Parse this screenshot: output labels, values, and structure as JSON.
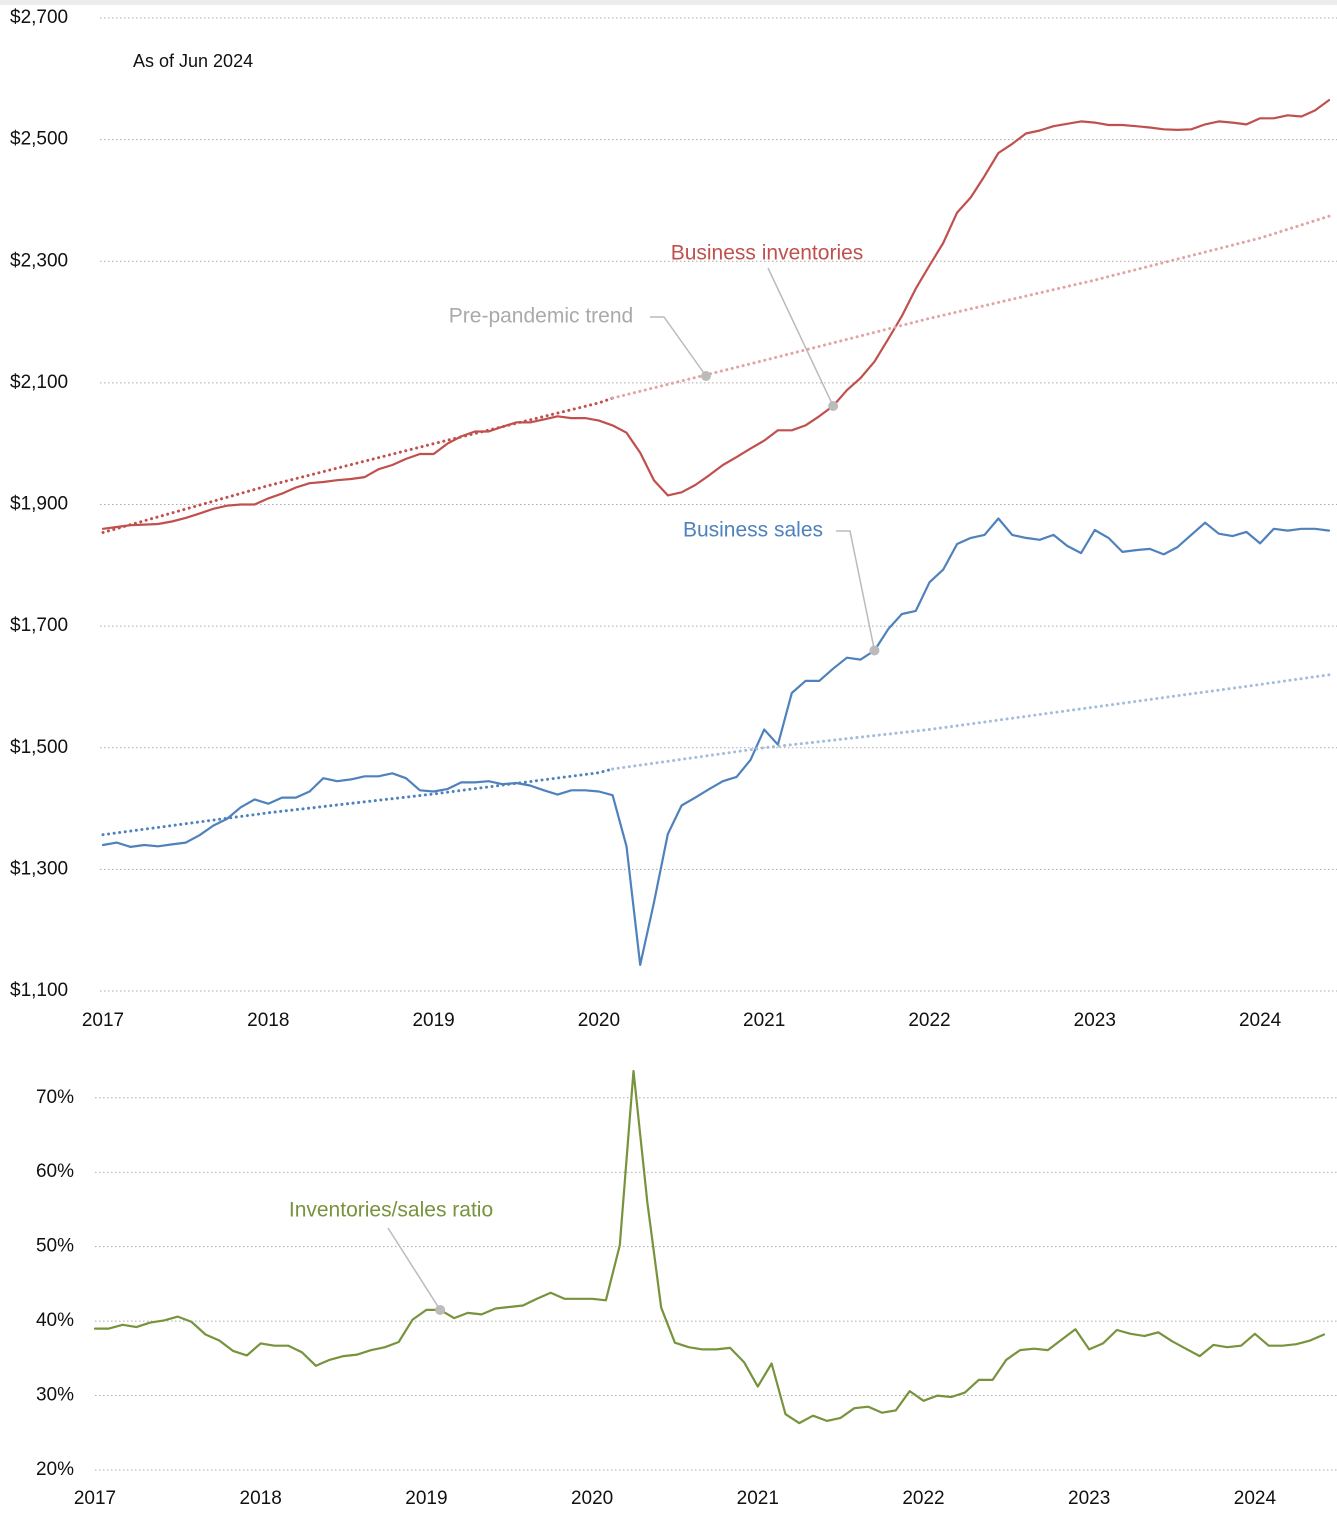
{
  "chart_data": [
    {
      "type": "line",
      "note": "As of Jun 2024",
      "x": [
        2017,
        2017.083,
        2017.167,
        2017.25,
        2017.333,
        2017.417,
        2017.5,
        2017.583,
        2017.667,
        2017.75,
        2017.833,
        2017.917,
        2018,
        2018.083,
        2018.167,
        2018.25,
        2018.333,
        2018.417,
        2018.5,
        2018.583,
        2018.667,
        2018.75,
        2018.833,
        2018.917,
        2019,
        2019.083,
        2019.167,
        2019.25,
        2019.333,
        2019.417,
        2019.5,
        2019.583,
        2019.667,
        2019.75,
        2019.833,
        2019.917,
        2020,
        2020.083,
        2020.167,
        2020.25,
        2020.333,
        2020.417,
        2020.5,
        2020.583,
        2020.667,
        2020.75,
        2020.833,
        2020.917,
        2021,
        2021.083,
        2021.167,
        2021.25,
        2021.333,
        2021.417,
        2021.5,
        2021.583,
        2021.667,
        2021.75,
        2021.833,
        2021.917,
        2022,
        2022.083,
        2022.167,
        2022.25,
        2022.333,
        2022.417,
        2022.5,
        2022.583,
        2022.667,
        2022.75,
        2022.833,
        2022.917,
        2023,
        2023.083,
        2023.167,
        2023.25,
        2023.333,
        2023.417,
        2023.5,
        2023.583,
        2023.667,
        2023.75,
        2023.833,
        2023.917,
        2024,
        2024.083,
        2024.167,
        2024.25,
        2024.333,
        2024.417
      ],
      "series": [
        {
          "name": "Business inventories",
          "color": "#c0504d",
          "values": [
            1860,
            1863,
            1866,
            1867,
            1868,
            1872,
            1878,
            1885,
            1893,
            1898,
            1900,
            1900,
            1910,
            1918,
            1928,
            1935,
            1937,
            1940,
            1942,
            1945,
            1958,
            1965,
            1975,
            1983,
            1983,
            2000,
            2012,
            2020,
            2020,
            2028,
            2035,
            2035,
            2040,
            2045,
            2042,
            2042,
            2038,
            2030,
            2018,
            1985,
            1940,
            1915,
            1920,
            1932,
            1948,
            1965,
            1978,
            1992,
            2005,
            2022,
            2022,
            2030,
            2045,
            2062,
            2088,
            2108,
            2135,
            2172,
            2210,
            2255,
            2293,
            2330,
            2380,
            2405,
            2440,
            2478,
            2493,
            2510,
            2515,
            2522,
            2526,
            2530,
            2528,
            2524,
            2524,
            2522,
            2520,
            2517,
            2516,
            2517,
            2525,
            2530,
            2528,
            2525,
            2535,
            2535,
            2540,
            2538,
            2548,
            2565
          ]
        },
        {
          "name": "Business sales",
          "color": "#4f81bd",
          "values": [
            1340,
            1344,
            1337,
            1340,
            1338,
            1341,
            1344,
            1356,
            1372,
            1383,
            1402,
            1415,
            1408,
            1418,
            1418,
            1428,
            1450,
            1445,
            1448,
            1453,
            1453,
            1458,
            1450,
            1430,
            1428,
            1432,
            1443,
            1443,
            1445,
            1440,
            1442,
            1438,
            1430,
            1423,
            1430,
            1430,
            1428,
            1422,
            1338,
            1143,
            1245,
            1358,
            1405,
            1418,
            1432,
            1445,
            1452,
            1480,
            1530,
            1505,
            1590,
            1610,
            1610,
            1630,
            1648,
            1645,
            1660,
            1695,
            1720,
            1725,
            1772,
            1793,
            1835,
            1845,
            1850,
            1877,
            1850,
            1845,
            1842,
            1850,
            1832,
            1820,
            1858,
            1845,
            1822,
            1825,
            1827,
            1818,
            1830,
            1850,
            1870,
            1852,
            1848,
            1855,
            1836,
            1860,
            1857,
            1860,
            1860,
            1857
          ]
        },
        {
          "color": "#c0504d",
          "style": "dotted",
          "x": [
            2017,
            2018,
            2019,
            2020,
            2020.083
          ],
          "values": [
            1854,
            1931,
            2000,
            2067,
            2075
          ]
        },
        {
          "name": "Pre-pandemic trend",
          "color": "#e2a3a2",
          "style": "dotted",
          "x": [
            2020.083,
            2021,
            2022,
            2023,
            2024,
            2024.417
          ],
          "values": [
            2075,
            2137,
            2206,
            2269,
            2338,
            2374
          ]
        },
        {
          "color": "#4f81bd",
          "style": "dotted",
          "x": [
            2017,
            2018,
            2019,
            2020,
            2020.083
          ],
          "values": [
            1357,
            1393,
            1424,
            1459,
            1465
          ]
        },
        {
          "color": "#a3bcdc",
          "style": "dotted",
          "x": [
            2020.083,
            2021,
            2022,
            2023,
            2024,
            2024.417
          ],
          "values": [
            1465,
            1500,
            1530,
            1567,
            1604,
            1620
          ]
        }
      ],
      "xlim": [
        2017,
        2024.5
      ],
      "xticks": [
        2017,
        2018,
        2019,
        2020,
        2021,
        2022,
        2023,
        2024
      ],
      "ylim": [
        1100,
        2700
      ],
      "yticks": [
        {
          "value": 1100,
          "label": "$1,100"
        },
        {
          "value": 1300,
          "label": "$1,300"
        },
        {
          "value": 1500,
          "label": "$1,500"
        },
        {
          "value": 1700,
          "label": "$1,700"
        },
        {
          "value": 1900,
          "label": "$1,900"
        },
        {
          "value": 2100,
          "label": "$2,100"
        },
        {
          "value": 2300,
          "label": "$2,300"
        },
        {
          "value": 2500,
          "label": "$2,500"
        },
        {
          "value": 2700,
          "label": "$2,700"
        }
      ],
      "grid": true
    },
    {
      "type": "line",
      "x": [
        2017,
        2017.083,
        2017.167,
        2017.25,
        2017.333,
        2017.417,
        2017.5,
        2017.583,
        2017.667,
        2017.75,
        2017.833,
        2017.917,
        2018,
        2018.083,
        2018.167,
        2018.25,
        2018.333,
        2018.417,
        2018.5,
        2018.583,
        2018.667,
        2018.75,
        2018.833,
        2018.917,
        2019,
        2019.083,
        2019.167,
        2019.25,
        2019.333,
        2019.417,
        2019.5,
        2019.583,
        2019.667,
        2019.75,
        2019.833,
        2019.917,
        2020,
        2020.083,
        2020.167,
        2020.25,
        2020.333,
        2020.417,
        2020.5,
        2020.583,
        2020.667,
        2020.75,
        2020.833,
        2020.917,
        2021,
        2021.083,
        2021.167,
        2021.25,
        2021.333,
        2021.417,
        2021.5,
        2021.583,
        2021.667,
        2021.75,
        2021.833,
        2021.917,
        2022,
        2022.083,
        2022.167,
        2022.25,
        2022.333,
        2022.417,
        2022.5,
        2022.583,
        2022.667,
        2022.75,
        2022.833,
        2022.917,
        2023,
        2023.083,
        2023.167,
        2023.25,
        2023.333,
        2023.417,
        2023.5,
        2023.583,
        2023.667,
        2023.75,
        2023.833,
        2023.917,
        2024,
        2024.083,
        2024.167,
        2024.25,
        2024.333,
        2024.417
      ],
      "series": [
        {
          "name": "Inventories/sales ratio",
          "color": "#77933c",
          "values": [
            39,
            39,
            39.5,
            39.2,
            39.8,
            40.1,
            40.6,
            39.9,
            38.2,
            37.4,
            36,
            35.4,
            37,
            36.7,
            36.7,
            35.8,
            34,
            34.8,
            35.3,
            35.5,
            36.1,
            36.5,
            37.2,
            40.2,
            41.5,
            41.5,
            40.4,
            41.1,
            40.9,
            41.7,
            41.9,
            42.1,
            43,
            43.8,
            43,
            43,
            43,
            42.8,
            50.2,
            73.6,
            56,
            41.8,
            37.1,
            36.5,
            36.2,
            36.2,
            36.4,
            34.5,
            31.2,
            34.3,
            27.5,
            26.3,
            27.3,
            26.6,
            27,
            28.3,
            28.5,
            27.7,
            28,
            30.6,
            29.3,
            30,
            29.8,
            30.4,
            32.1,
            32.1,
            34.8,
            36.1,
            36.3,
            36.1,
            37.5,
            38.9,
            36.2,
            37,
            38.8,
            38.3,
            38,
            38.5,
            37.3,
            36.3,
            35.3,
            36.8,
            36.5,
            36.7,
            38.3,
            36.7,
            36.7,
            36.9,
            37.4,
            38.2
          ]
        }
      ],
      "xlim": [
        2017,
        2024.5
      ],
      "xticks": [
        2017,
        2018,
        2019,
        2020,
        2021,
        2022,
        2023,
        2024
      ],
      "ylim": [
        20,
        74
      ],
      "yticks": [
        {
          "value": 20,
          "label": "20%"
        },
        {
          "value": 30,
          "label": "30%"
        },
        {
          "value": 40,
          "label": "40%"
        },
        {
          "value": 50,
          "label": "50%"
        },
        {
          "value": 60,
          "label": "60%"
        },
        {
          "value": 70,
          "label": "70%"
        }
      ],
      "grid": true
    }
  ]
}
